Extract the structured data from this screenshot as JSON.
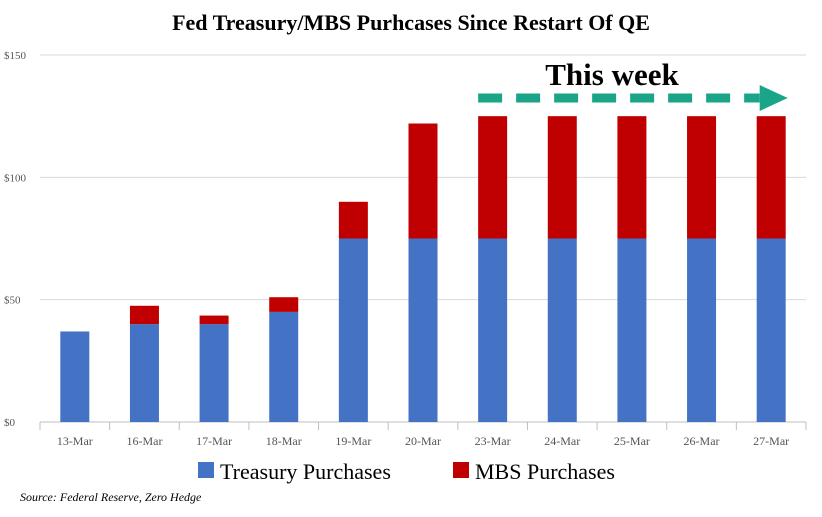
{
  "chart_data": {
    "type": "bar",
    "stacked": true,
    "title": "Fed Treasury/MBS Purhcases Since Restart Of QE",
    "categories": [
      "13-Mar",
      "16-Mar",
      "17-Mar",
      "18-Mar",
      "19-Mar",
      "20-Mar",
      "23-Mar",
      "24-Mar",
      "25-Mar",
      "26-Mar",
      "27-Mar"
    ],
    "series": [
      {
        "name": "Treasury Purchases",
        "color": "#4472C4",
        "values": [
          37,
          40,
          40,
          45,
          75,
          75,
          75,
          75,
          75,
          75,
          75
        ]
      },
      {
        "name": "MBS Purchases",
        "color": "#C00000",
        "values": [
          0,
          7.5,
          3.5,
          6,
          15,
          47,
          50,
          50,
          50,
          50,
          50
        ]
      }
    ],
    "y_ticks": [
      "$0",
      "$50",
      "$100",
      "$150"
    ],
    "ylim": [
      0,
      150
    ],
    "grid": true,
    "legend_position": "bottom",
    "annotation": {
      "text": "This week",
      "arrow_color": "#1AA589",
      "from_category": "23-Mar",
      "to_category": "27-Mar"
    },
    "source": "Source: Federal Reserve, Zero Hedge"
  }
}
